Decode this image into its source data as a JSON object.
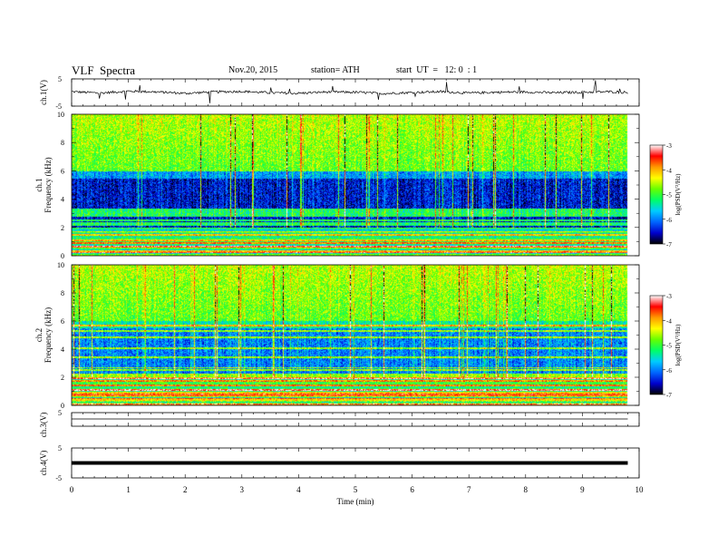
{
  "header": {
    "title": "VLF  Spectra",
    "date": "Nov.20, 2015",
    "station": "station= ATH",
    "start": "start  UT  =   12: 0  : 1"
  },
  "colors": {
    "background": "#ffffff",
    "axis": "#000000",
    "trace": "#000000",
    "colorbar_stops": [
      "#000000",
      "#0000cc",
      "#0066ff",
      "#00ccff",
      "#00ff66",
      "#66ff00",
      "#ffff00",
      "#ff9900",
      "#ff0000",
      "#ffffff"
    ]
  },
  "chart_data": [
    {
      "type": "line",
      "panel": "ch1-voltage",
      "title": "",
      "ylabel": "ch.1(V)",
      "xlim": [
        0,
        10
      ],
      "ylim": [
        -5,
        5
      ],
      "yticks": [
        5,
        -5
      ],
      "x": [
        0,
        0.5,
        1,
        1.5,
        2,
        2.5,
        3,
        3.5,
        4,
        4.5,
        5,
        5.5,
        6,
        6.5,
        7,
        7.5,
        8,
        8.5,
        9,
        9.5,
        9.8
      ],
      "values": [
        0.3,
        -0.2,
        0.5,
        0.2,
        -0.3,
        0.2,
        0.4,
        -0.1,
        -0.3,
        0.2,
        0.1,
        -0.4,
        0.0,
        0.3,
        -0.2,
        0.1,
        0.2,
        -0.1,
        0.1,
        0.3,
        0.0
      ]
    },
    {
      "type": "heatmap",
      "panel": "ch1-spectrogram",
      "ylabel": "ch.1\nFrequency  (kHz)",
      "xlim": [
        0,
        10
      ],
      "ylim": [
        0,
        10
      ],
      "yticks": [
        0,
        2,
        4,
        6,
        8,
        10
      ],
      "colorbar": {
        "label": "log(PSD(V²/Hz)",
        "ticks": [
          -3,
          -4,
          -5,
          -6,
          -7
        ],
        "range": [
          -7,
          -3
        ]
      },
      "description_bands_khz": [
        {
          "from": 0,
          "to": 2,
          "level": "mixed -6 to -4"
        },
        {
          "from": 2,
          "to": 6,
          "level": "about -7 to -6.5"
        },
        {
          "from": 6,
          "to": 10,
          "level": "about -5.5 to -4.5"
        }
      ]
    },
    {
      "type": "heatmap",
      "panel": "ch2-spectrogram",
      "ylabel": "ch.2\nFrequency  (kHz)",
      "xlim": [
        0,
        10
      ],
      "ylim": [
        0,
        10
      ],
      "yticks": [
        0,
        2,
        4,
        6,
        8,
        10
      ],
      "colorbar": {
        "label": "log(PSD(V²/Hz)",
        "ticks": [
          -3,
          -4,
          -5,
          -6,
          -7
        ],
        "range": [
          -7,
          -3
        ]
      },
      "description_bands_khz": [
        {
          "from": 0,
          "to": 2,
          "level": "mixed -5.5 to -4"
        },
        {
          "from": 2,
          "to": 6,
          "level": "about -6.5 to -6"
        },
        {
          "from": 6,
          "to": 10,
          "level": "about -5.5 to -4.5"
        }
      ]
    },
    {
      "type": "line",
      "panel": "ch3-voltage",
      "ylabel": "ch.3(V)",
      "xlim": [
        0,
        10
      ],
      "ylim": [
        -5,
        5
      ],
      "yticks": [
        5
      ],
      "x": [
        0,
        9.8
      ],
      "values": [
        -0.5,
        -0.5
      ]
    },
    {
      "type": "line",
      "panel": "ch4-voltage",
      "ylabel": "ch.4(V)",
      "xlim": [
        0,
        10
      ],
      "ylim": [
        -5,
        5
      ],
      "yticks": [
        5,
        -5
      ],
      "x": [
        0,
        9.8
      ],
      "values": [
        0.0,
        0.0
      ]
    }
  ],
  "xaxis": {
    "label": "Time  (min)",
    "ticks": [
      "0",
      "1",
      "2",
      "3",
      "4",
      "5",
      "6",
      "7",
      "8",
      "9",
      "10"
    ]
  }
}
